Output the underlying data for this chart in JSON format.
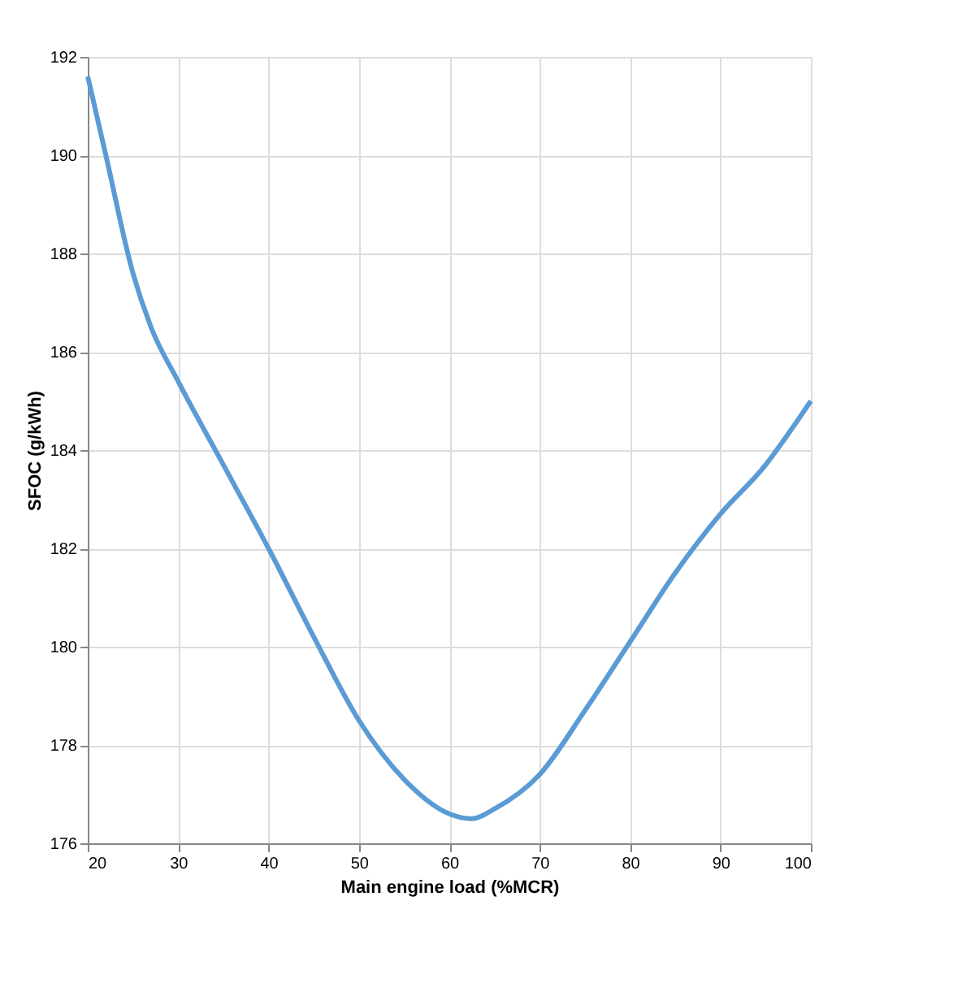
{
  "chart_data": {
    "type": "line",
    "xlabel": "Main engine load (%MCR)",
    "ylabel": "SFOC (g/kWh)",
    "x": [
      20,
      22,
      25,
      27,
      30,
      35,
      40,
      45,
      50,
      55,
      60,
      62.5,
      65,
      70,
      75,
      80,
      85,
      90,
      95,
      97,
      100
    ],
    "series": [
      {
        "color": "#5b9bd5",
        "values": [
          191.6,
          190.0,
          187.6,
          186.5,
          185.4,
          183.7,
          182.0,
          180.2,
          178.5,
          177.3,
          176.6,
          176.5,
          176.7,
          177.4,
          178.7,
          180.1,
          181.5,
          182.7,
          183.7,
          184.2,
          185.0
        ]
      }
    ],
    "xlim": [
      20,
      100
    ],
    "xticks": [
      20,
      30,
      40,
      50,
      60,
      70,
      80,
      90,
      100
    ],
    "ylim": [
      176,
      192
    ],
    "yticks": [
      176,
      178,
      180,
      182,
      184,
      186,
      188,
      190,
      192
    ],
    "grid": true,
    "legend": false,
    "marker": "none",
    "line_style": "solid"
  }
}
